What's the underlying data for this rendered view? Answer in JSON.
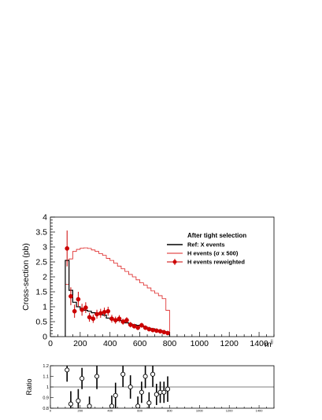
{
  "chart_data": [
    {
      "type": "line",
      "ylabel": "Cross-section (pb)",
      "xlabel": "m",
      "xlabel_sup": "jj",
      "xlim": [
        0,
        1500
      ],
      "ylim": [
        0,
        4
      ],
      "x_ticks": [
        "0",
        "200",
        "400",
        "600",
        "800",
        "1000",
        "1200",
        "1400"
      ],
      "y_ticks": [
        "0",
        "0.5",
        "1",
        "1.5",
        "2",
        "2.5",
        "3",
        "3.5",
        "4"
      ],
      "legend": {
        "title": "After tight selection",
        "placement": "top-right",
        "entries": [
          "Ref: X events",
          "H events (σ x 500)",
          "H events reweighted"
        ]
      },
      "bin_edges": [
        100,
        125,
        150,
        175,
        200,
        225,
        250,
        275,
        300,
        325,
        350,
        375,
        400,
        425,
        450,
        475,
        500,
        525,
        550,
        575,
        600,
        625,
        650,
        675,
        700,
        725,
        750,
        775,
        800
      ],
      "series": [
        {
          "name": "Ref: X events",
          "style": "step",
          "color": "#000000",
          "values": [
            2.55,
            1.55,
            1.15,
            1.0,
            0.92,
            0.88,
            0.85,
            0.8,
            0.76,
            0.74,
            0.72,
            0.62,
            0.58,
            0.56,
            0.54,
            0.5,
            0.46,
            0.42,
            0.4,
            0.38,
            0.36,
            0.32,
            0.28,
            0.26,
            0.22,
            0.2,
            0.17,
            0.14
          ]
        },
        {
          "name": "H events (σ x 500)",
          "style": "step",
          "color": "#dd2222",
          "values": [
            1.75,
            2.6,
            2.85,
            2.92,
            2.96,
            2.97,
            2.95,
            2.9,
            2.85,
            2.78,
            2.72,
            2.62,
            2.55,
            2.46,
            2.36,
            2.27,
            2.18,
            2.08,
            2.0,
            1.9,
            1.8,
            1.72,
            1.63,
            1.53,
            1.45,
            1.37,
            1.27,
            0.88
          ]
        },
        {
          "name": "H events reweighted",
          "style": "points",
          "color": "#cc0000",
          "x": [
            112,
            137,
            162,
            187,
            212,
            237,
            262,
            287,
            312,
            337,
            362,
            387,
            412,
            437,
            462,
            487,
            512,
            537,
            562,
            587,
            612,
            637,
            662,
            687,
            712,
            737,
            762,
            787
          ],
          "values": [
            2.95,
            1.35,
            0.85,
            1.25,
            0.9,
            0.97,
            0.65,
            0.6,
            0.75,
            0.78,
            0.82,
            0.85,
            0.6,
            0.55,
            0.6,
            0.5,
            0.55,
            0.4,
            0.35,
            0.3,
            0.38,
            0.3,
            0.25,
            0.22,
            0.2,
            0.18,
            0.15,
            0.12
          ],
          "errors": [
            0.6,
            0.3,
            0.22,
            0.25,
            0.2,
            0.18,
            0.15,
            0.14,
            0.15,
            0.15,
            0.15,
            0.15,
            0.13,
            0.12,
            0.12,
            0.1,
            0.1,
            0.09,
            0.08,
            0.08,
            0.08,
            0.07,
            0.07,
            0.06,
            0.06,
            0.05,
            0.05,
            0.05
          ]
        }
      ]
    },
    {
      "type": "scatter",
      "ylabel": "Ratio",
      "xlim": [
        0,
        1500
      ],
      "ylim": [
        0.8,
        1.2
      ],
      "y_ticks": [
        "0.8",
        "0.9",
        "1",
        "1.1",
        "1.2"
      ],
      "x_ticks": [
        "0",
        "200",
        "400",
        "600",
        "800",
        "1000",
        "1200",
        "1400"
      ],
      "reference_line": 1.0,
      "series": [
        {
          "name": "Ratio",
          "style": "open-points",
          "color": "#000000",
          "x": [
            112,
            137,
            187,
            212,
            262,
            312,
            412,
            437,
            487,
            537,
            587,
            612,
            637,
            662,
            687,
            712,
            737,
            762,
            787
          ],
          "values": [
            1.16,
            0.84,
            0.87,
            1.08,
            0.82,
            1.1,
            0.82,
            0.92,
            1.12,
            1.0,
            0.82,
            0.95,
            1.1,
            0.85,
            1.12,
            0.93,
            0.95,
            0.95,
            0.98
          ],
          "errors": [
            0.11,
            0.12,
            0.11,
            0.1,
            0.09,
            0.12,
            0.1,
            0.12,
            0.12,
            0.11,
            0.09,
            0.1,
            0.11,
            0.1,
            0.12,
            0.1,
            0.1,
            0.1,
            0.12
          ]
        }
      ]
    }
  ]
}
